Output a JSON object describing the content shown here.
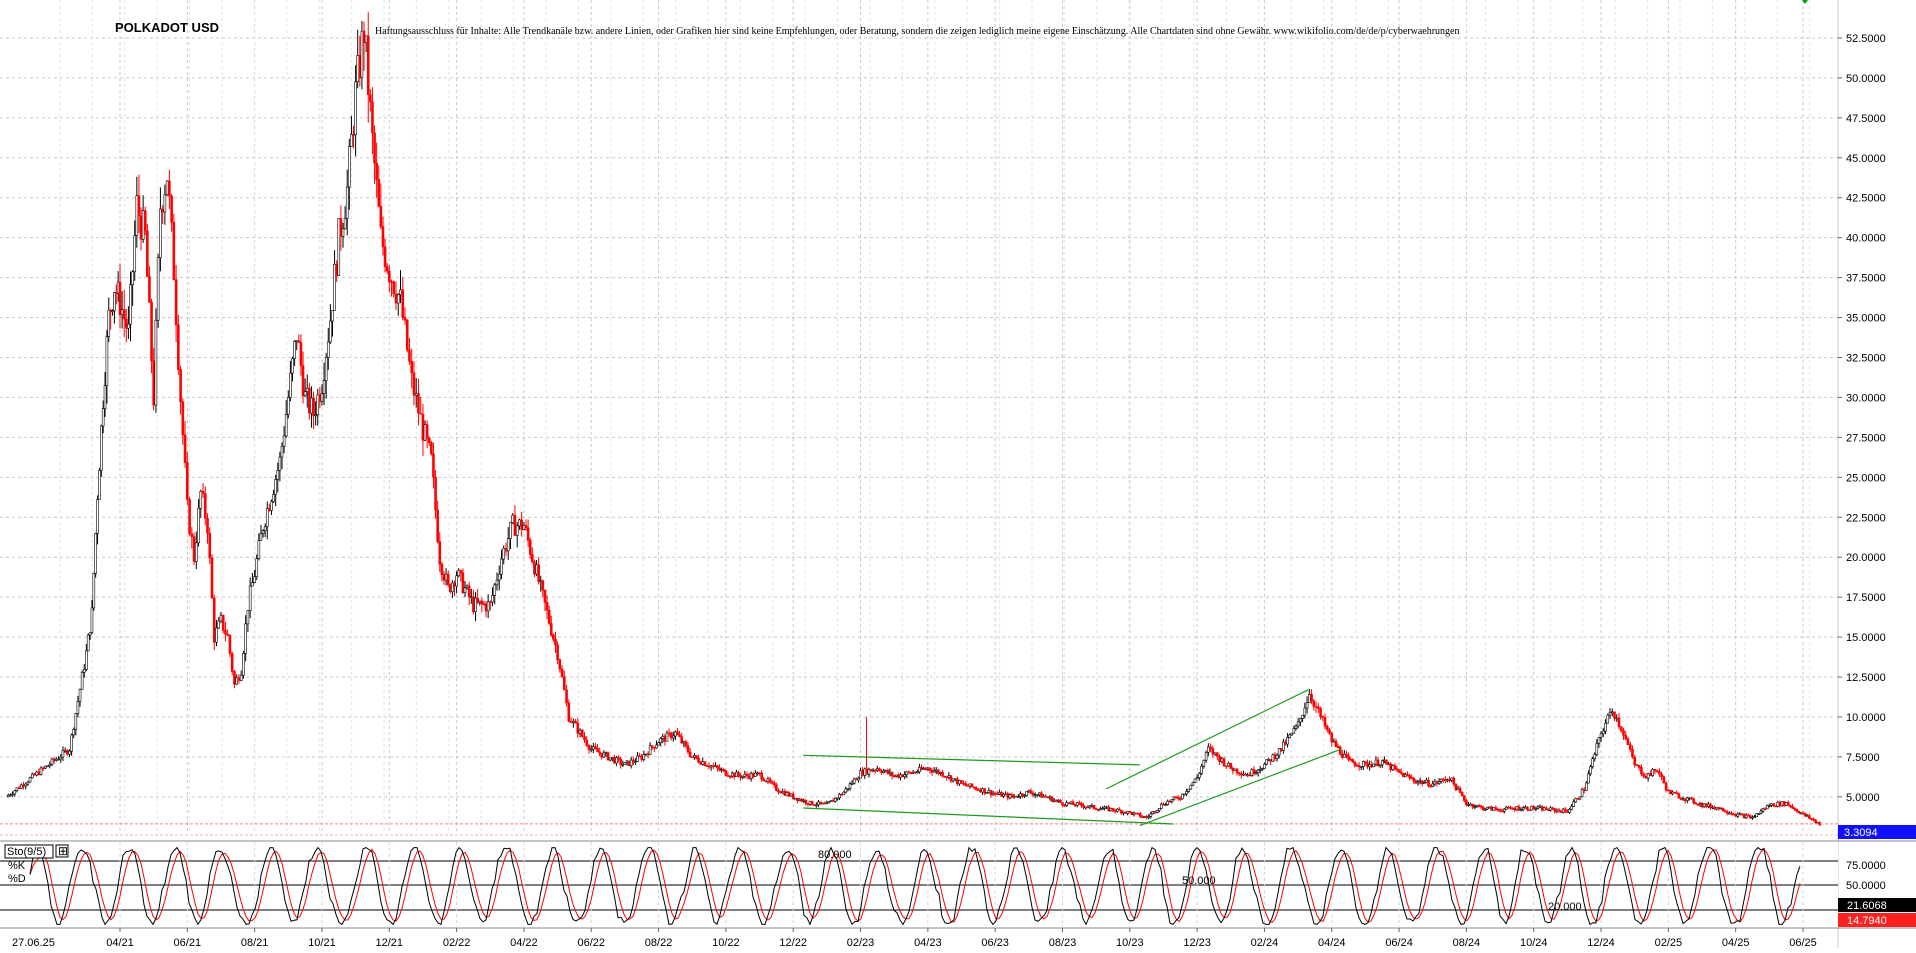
{
  "chart_data": {
    "type": "candlestick",
    "title": "POLKADOT USD",
    "disclaimer": "Haftungsausschluss für Inhalte: Alle Trendkanäle bzw. andere Linien, oder Grafiken hier sind keine Empfehlungen, oder Beratung, sondern die zeigen lediglich meine eigene Einschätzung. Alle Chartdaten sind ohne Gewähr. www.wikifolio.com/de/de/p/cyberwaehrungen",
    "grid": true,
    "price_axis": {
      "ylim": [
        2.8,
        54.5
      ],
      "ticks": [
        "52.5000",
        "50.0000",
        "47.5000",
        "45.0000",
        "42.5000",
        "40.0000",
        "37.5000",
        "35.0000",
        "32.5000",
        "30.0000",
        "27.5000",
        "25.0000",
        "22.5000",
        "20.0000",
        "17.5000",
        "15.0000",
        "12.5000",
        "10.0000",
        "7.5000",
        "5.0000"
      ],
      "last_price_label": "3.3094",
      "last_price": 3.3094,
      "last_price_color": "#1010ff"
    },
    "x_axis": {
      "start_label": "27.06.25",
      "tick_labels": [
        "04/21",
        "06/21",
        "08/21",
        "10/21",
        "12/21",
        "02/22",
        "04/22",
        "06/22",
        "08/22",
        "10/22",
        "12/22",
        "02/23",
        "04/23",
        "06/23",
        "08/23",
        "10/23",
        "12/23",
        "02/24",
        "04/24",
        "06/24",
        "08/24",
        "10/24",
        "12/24",
        "02/25",
        "04/25",
        "06/25"
      ],
      "tick_dates": [
        "2021-04",
        "2021-06",
        "2021-08",
        "2021-10",
        "2021-12",
        "2022-02",
        "2022-04",
        "2022-06",
        "2022-08",
        "2022-10",
        "2022-12",
        "2023-02",
        "2023-04",
        "2023-06",
        "2023-08",
        "2023-10",
        "2023-12",
        "2024-02",
        "2024-04",
        "2024-06",
        "2024-08",
        "2024-10",
        "2024-12",
        "2025-02",
        "2025-04",
        "2025-06"
      ]
    },
    "price_path": [
      [
        "2021-02",
        5.0
      ],
      [
        "2021-02",
        8.0
      ],
      [
        "2021-03",
        14.0
      ],
      [
        "2021-03",
        16.5
      ],
      [
        "2021-03",
        24.0
      ],
      [
        "2021-03",
        30.0
      ],
      [
        "2021-03",
        35.0
      ],
      [
        "2021-03",
        37.0
      ],
      [
        "2021-04",
        36.0
      ],
      [
        "2021-04",
        34.0
      ],
      [
        "2021-04",
        42.0
      ],
      [
        "2021-04",
        40.0
      ],
      [
        "2021-05",
        30.0
      ],
      [
        "2021-05",
        42.0
      ],
      [
        "2021-05",
        44.0
      ],
      [
        "2021-05",
        38.0
      ],
      [
        "2021-05",
        30.0
      ],
      [
        "2021-06",
        23.0
      ],
      [
        "2021-06",
        20.0
      ],
      [
        "2021-06",
        24.0
      ],
      [
        "2021-06",
        22.0
      ],
      [
        "2021-06",
        15.0
      ],
      [
        "2021-07",
        16.0
      ],
      [
        "2021-07",
        15.0
      ],
      [
        "2021-07",
        12.0
      ],
      [
        "2021-07",
        13.0
      ],
      [
        "2021-07",
        17.0
      ],
      [
        "2021-08",
        19.0
      ],
      [
        "2021-08",
        22.0
      ],
      [
        "2021-08",
        24.0
      ],
      [
        "2021-08",
        26.0
      ],
      [
        "2021-09",
        30.0
      ],
      [
        "2021-09",
        34.0
      ],
      [
        "2021-09",
        30.0
      ],
      [
        "2021-09",
        29.0
      ],
      [
        "2021-10",
        31.0
      ],
      [
        "2021-10",
        35.0
      ],
      [
        "2021-10",
        40.0
      ],
      [
        "2021-10",
        43.0
      ],
      [
        "2021-11",
        49.0
      ],
      [
        "2021-11",
        53.0
      ],
      [
        "2021-11",
        46.0
      ],
      [
        "2021-11",
        40.0
      ],
      [
        "2021-12",
        38.0
      ],
      [
        "2021-12",
        36.0
      ],
      [
        "2021-12",
        31.0
      ],
      [
        "2022-01",
        28.0
      ],
      [
        "2022-01",
        26.0
      ],
      [
        "2022-01",
        20.0
      ],
      [
        "2022-01",
        18.0
      ],
      [
        "2022-02",
        19.0
      ],
      [
        "2022-02",
        17.0
      ],
      [
        "2022-03",
        17.0
      ],
      [
        "2022-03",
        20.0
      ],
      [
        "2022-03",
        22.0
      ],
      [
        "2022-04",
        22.0
      ],
      [
        "2022-04",
        18.0
      ],
      [
        "2022-05",
        14.0
      ],
      [
        "2022-05",
        10.0
      ],
      [
        "2022-05",
        9.0
      ],
      [
        "2022-06",
        8.0
      ],
      [
        "2022-06",
        7.5
      ],
      [
        "2022-07",
        7.0
      ],
      [
        "2022-07",
        7.5
      ],
      [
        "2022-08",
        8.5
      ],
      [
        "2022-08",
        9.0
      ],
      [
        "2022-09",
        7.5
      ],
      [
        "2022-09",
        7.0
      ],
      [
        "2022-10",
        6.5
      ],
      [
        "2022-10",
        6.3
      ],
      [
        "2022-11",
        6.4
      ],
      [
        "2022-11",
        5.5
      ],
      [
        "2022-12",
        5.0
      ],
      [
        "2022-12",
        4.6
      ],
      [
        "2023-01",
        4.5
      ],
      [
        "2023-01",
        5.3
      ],
      [
        "2023-02",
        6.5
      ],
      [
        "2023-02",
        6.8
      ],
      [
        "2023-03",
        6.3
      ],
      [
        "2023-03",
        6.5
      ],
      [
        "2023-04",
        6.8
      ],
      [
        "2023-04",
        6.4
      ],
      [
        "2023-05",
        5.8
      ],
      [
        "2023-05",
        5.5
      ],
      [
        "2023-06",
        5.2
      ],
      [
        "2023-06",
        5.0
      ],
      [
        "2023-07",
        5.3
      ],
      [
        "2023-07",
        5.0
      ],
      [
        "2023-08",
        4.6
      ],
      [
        "2023-08",
        4.5
      ],
      [
        "2023-09",
        4.3
      ],
      [
        "2023-09",
        4.2
      ],
      [
        "2023-10",
        4.0
      ],
      [
        "2023-10",
        3.7
      ],
      [
        "2023-11",
        4.6
      ],
      [
        "2023-11",
        5.0
      ],
      [
        "2023-12",
        6.2
      ],
      [
        "2023-12",
        8.0
      ],
      [
        "2023-12",
        7.4
      ],
      [
        "2024-01",
        6.8
      ],
      [
        "2024-01",
        6.4
      ],
      [
        "2024-02",
        7.0
      ],
      [
        "2024-02",
        8.0
      ],
      [
        "2024-03",
        9.5
      ],
      [
        "2024-03",
        11.5
      ],
      [
        "2024-03",
        10.0
      ],
      [
        "2024-04",
        8.5
      ],
      [
        "2024-04",
        7.2
      ],
      [
        "2024-05",
        7.0
      ],
      [
        "2024-05",
        7.2
      ],
      [
        "2024-06",
        6.5
      ],
      [
        "2024-06",
        6.0
      ],
      [
        "2024-07",
        5.8
      ],
      [
        "2024-07",
        6.2
      ],
      [
        "2024-08",
        4.6
      ],
      [
        "2024-08",
        4.3
      ],
      [
        "2024-09",
        4.2
      ],
      [
        "2024-09",
        4.3
      ],
      [
        "2024-10",
        4.3
      ],
      [
        "2024-10",
        4.2
      ],
      [
        "2024-11",
        4.1
      ],
      [
        "2024-11",
        5.5
      ],
      [
        "2024-12",
        9.0
      ],
      [
        "2024-12",
        10.5
      ],
      [
        "2024-12",
        9.0
      ],
      [
        "2025-01",
        7.0
      ],
      [
        "2025-01",
        6.3
      ],
      [
        "2025-01",
        6.7
      ],
      [
        "2025-02",
        5.3
      ],
      [
        "2025-02",
        4.9
      ],
      [
        "2025-03",
        4.5
      ],
      [
        "2025-03",
        4.3
      ],
      [
        "2025-04",
        3.9
      ],
      [
        "2025-04",
        3.7
      ],
      [
        "2025-05",
        4.5
      ],
      [
        "2025-05",
        4.6
      ],
      [
        "2025-06",
        3.9
      ],
      [
        "2025-06",
        3.3
      ]
    ],
    "trend_lines": [
      {
        "from": [
          "2022-12",
          7.6
        ],
        "to": [
          "2023-10",
          7.0
        ],
        "color": "#1f9a1f"
      },
      {
        "from": [
          "2022-12",
          4.3
        ],
        "to": [
          "2023-11",
          3.3
        ],
        "color": "#1f9a1f"
      },
      {
        "from": [
          "2023-09",
          5.5
        ],
        "to": [
          "2024-03",
          11.7
        ],
        "color": "#1f9a1f"
      },
      {
        "from": [
          "2023-10",
          3.2
        ],
        "to": [
          "2024-04",
          8.0
        ],
        "color": "#1f9a1f"
      }
    ],
    "spike_line": {
      "date": "2023-02",
      "low": 6.5,
      "high": 10.0,
      "color": "#ff0000"
    },
    "indicator": {
      "name": "Sto(9/5)",
      "k_label": "%K",
      "d_label": "%D",
      "ylim": [
        0,
        100
      ],
      "ticks": [
        "75.0000",
        "50.0000"
      ],
      "last_k_label": "21.6068",
      "last_d_label": "14.7940",
      "last_d_color": "#ff2020",
      "last_k_color": "#000000",
      "levels": [
        80,
        50,
        20
      ],
      "annotations": [
        "80.000",
        "50.000",
        "20.000"
      ]
    }
  }
}
